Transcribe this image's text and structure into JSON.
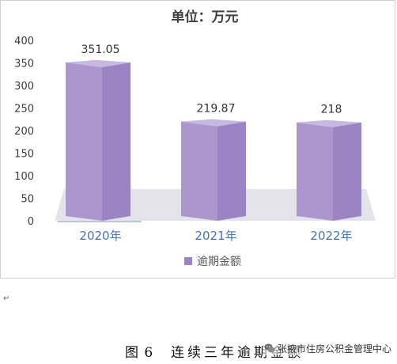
{
  "chart_data": {
    "type": "bar",
    "title": "单位：万元",
    "categories": [
      "2020年",
      "2021年",
      "2022年"
    ],
    "series": [
      {
        "name": "逾期金额",
        "values": [
          351.05,
          219.87,
          218
        ],
        "labels": [
          "351.05",
          "219.87",
          "218"
        ]
      }
    ],
    "ylim": [
      0,
      400
    ],
    "yticks": [
      0,
      50,
      100,
      150,
      200,
      250,
      300,
      350,
      400
    ],
    "grid": false,
    "legend": "bottom",
    "style": "3d-column",
    "colors": {
      "bar_front": "#ab97cd",
      "bar_side": "#9a84c4",
      "bar_top": "#c7b8e2",
      "floor": "#e4e2eb",
      "category_text": "#4d72b4",
      "axis_text": "#3a3a3a"
    }
  },
  "caption": {
    "figure": "图 6",
    "title": "连续三年逾期金额"
  },
  "watermark": {
    "icon": "wechat-icon",
    "text": "张掖市住房公积金管理中心"
  }
}
